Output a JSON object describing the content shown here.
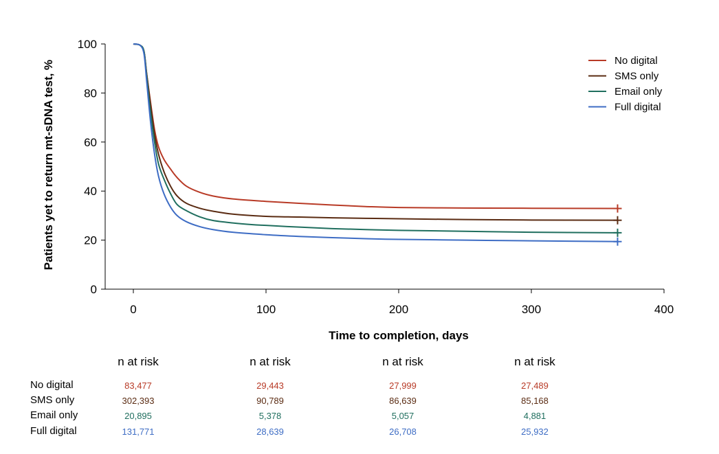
{
  "chart_data": {
    "type": "line",
    "title": "",
    "xlabel": "Time to completion, days",
    "ylabel": "Patients yet to return mt-sDNA test, %",
    "xlim": [
      0,
      400
    ],
    "ylim": [
      0,
      100
    ],
    "xticks": [
      0,
      100,
      200,
      300,
      400
    ],
    "yticks": [
      0,
      20,
      40,
      60,
      80,
      100
    ],
    "grid": false,
    "legend": "top-right",
    "series": [
      {
        "name": "No digital",
        "color": "#b83a26",
        "censor_marker": true,
        "points": [
          [
            0,
            100
          ],
          [
            5,
            99.5
          ],
          [
            8,
            97
          ],
          [
            10,
            88
          ],
          [
            13,
            76
          ],
          [
            16,
            65
          ],
          [
            19,
            58
          ],
          [
            23,
            53
          ],
          [
            28,
            49
          ],
          [
            33,
            45.5
          ],
          [
            40,
            42
          ],
          [
            50,
            39.5
          ],
          [
            60,
            38
          ],
          [
            75,
            36.8
          ],
          [
            100,
            35.8
          ],
          [
            125,
            35
          ],
          [
            150,
            34.3
          ],
          [
            175,
            33.7
          ],
          [
            200,
            33.3
          ],
          [
            250,
            33.1
          ],
          [
            300,
            33
          ],
          [
            365,
            32.9
          ]
        ]
      },
      {
        "name": "SMS only",
        "color": "#5a2b12",
        "censor_marker": true,
        "points": [
          [
            0,
            100
          ],
          [
            5,
            99.5
          ],
          [
            8,
            97
          ],
          [
            10,
            88
          ],
          [
            13,
            75
          ],
          [
            16,
            63
          ],
          [
            19,
            55
          ],
          [
            23,
            48
          ],
          [
            28,
            42
          ],
          [
            33,
            38
          ],
          [
            40,
            35
          ],
          [
            50,
            33
          ],
          [
            60,
            31.8
          ],
          [
            75,
            30.6
          ],
          [
            100,
            29.7
          ],
          [
            125,
            29.4
          ],
          [
            150,
            29.1
          ],
          [
            175,
            28.9
          ],
          [
            200,
            28.7
          ],
          [
            250,
            28.4
          ],
          [
            300,
            28.2
          ],
          [
            365,
            28.1
          ]
        ]
      },
      {
        "name": "Email only",
        "color": "#1f6e5e",
        "censor_marker": true,
        "points": [
          [
            0,
            100
          ],
          [
            5,
            99.5
          ],
          [
            8,
            97
          ],
          [
            10,
            87
          ],
          [
            13,
            72
          ],
          [
            16,
            60
          ],
          [
            19,
            51
          ],
          [
            23,
            45
          ],
          [
            28,
            39
          ],
          [
            33,
            34.5
          ],
          [
            40,
            32
          ],
          [
            50,
            29.5
          ],
          [
            60,
            28
          ],
          [
            75,
            27
          ],
          [
            90,
            26.3
          ],
          [
            100,
            26
          ],
          [
            125,
            25.3
          ],
          [
            150,
            24.7
          ],
          [
            175,
            24.3
          ],
          [
            200,
            24
          ],
          [
            250,
            23.6
          ],
          [
            300,
            23.2
          ],
          [
            365,
            23
          ]
        ]
      },
      {
        "name": "Full digital",
        "color": "#3d6cc4",
        "censor_marker": true,
        "points": [
          [
            0,
            100
          ],
          [
            5,
            99.5
          ],
          [
            8,
            96
          ],
          [
            10,
            85
          ],
          [
            13,
            68
          ],
          [
            16,
            55
          ],
          [
            19,
            46
          ],
          [
            23,
            39
          ],
          [
            28,
            33.5
          ],
          [
            33,
            30
          ],
          [
            40,
            27.5
          ],
          [
            50,
            25.5
          ],
          [
            60,
            24.3
          ],
          [
            75,
            23.2
          ],
          [
            100,
            22.2
          ],
          [
            125,
            21.5
          ],
          [
            150,
            21
          ],
          [
            175,
            20.6
          ],
          [
            200,
            20.3
          ],
          [
            250,
            20
          ],
          [
            300,
            19.7
          ],
          [
            365,
            19.4
          ]
        ]
      }
    ],
    "risk_table": {
      "header": "n at risk",
      "columns": 4,
      "rows": [
        {
          "label": "No digital",
          "color": "#b83a26",
          "values": [
            "83,477",
            "29,443",
            "27,999",
            "27,489"
          ]
        },
        {
          "label": "SMS only",
          "color": "#5a2b12",
          "values": [
            "302,393",
            "90,789",
            "86,639",
            "85,168"
          ]
        },
        {
          "label": "Email only",
          "color": "#1f6e5e",
          "values": [
            "20,895",
            "5,378",
            "5,057",
            "4,881"
          ]
        },
        {
          "label": "Full digital",
          "color": "#3d6cc4",
          "values": [
            "131,771",
            "28,639",
            "26,708",
            "25,932"
          ]
        }
      ]
    }
  }
}
